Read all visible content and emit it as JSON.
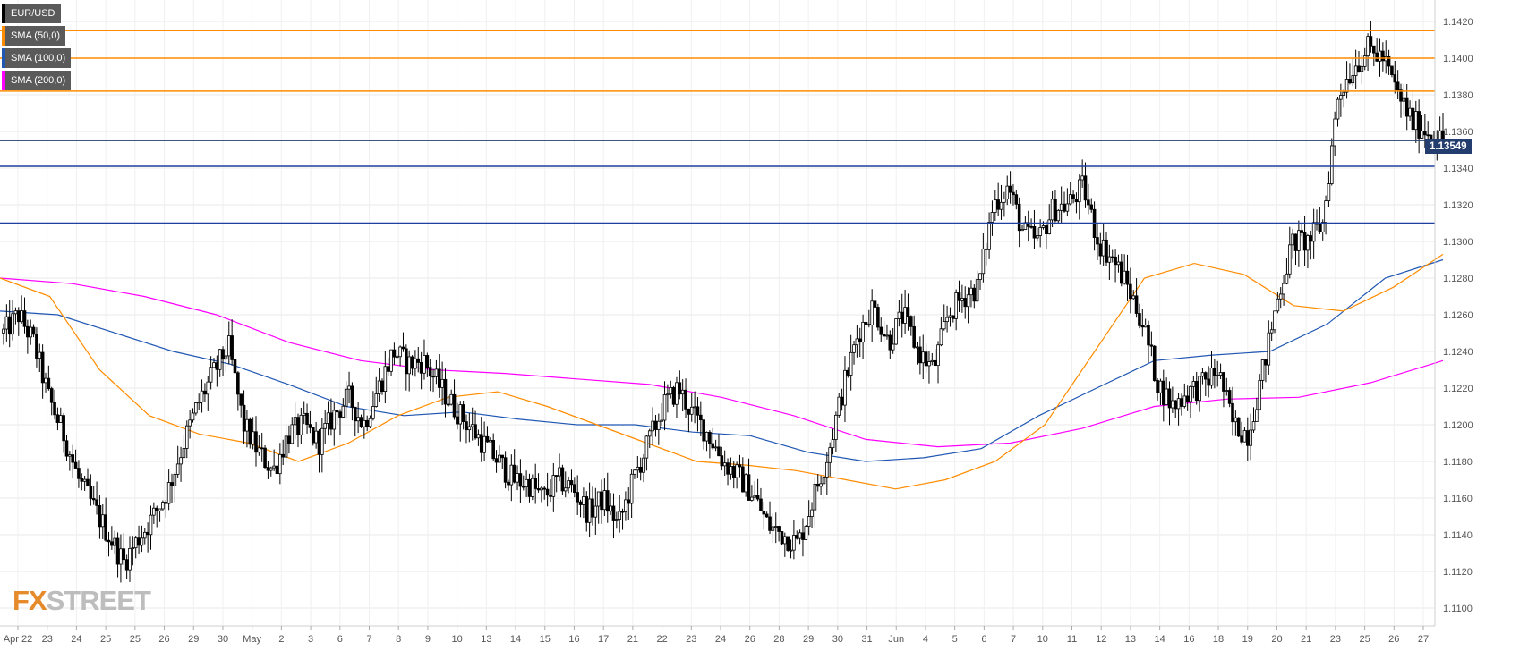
{
  "legend": [
    {
      "label": "EUR/USD",
      "color": "#000000"
    },
    {
      "label": "SMA (50,0)",
      "color": "#ff8c00"
    },
    {
      "label": "SMA (100,0)",
      "color": "#2057b3"
    },
    {
      "label": "SMA (200,0)",
      "color": "#ff00ff"
    }
  ],
  "last_price": "1.13549",
  "logo": {
    "fx": "FX",
    "street": "STREET",
    "x_color": "#e58b2c"
  },
  "chart_data": {
    "type": "candlestick",
    "symbol": "EUR/USD",
    "timeframe": "4H",
    "ylim": [
      1.109,
      1.143
    ],
    "y_ticks": [
      "1.1100",
      "1.1120",
      "1.1140",
      "1.1160",
      "1.1180",
      "1.1200",
      "1.1220",
      "1.1240",
      "1.1260",
      "1.1280",
      "1.1300",
      "1.1320",
      "1.1340",
      "1.1360",
      "1.1380",
      "1.1400",
      "1.1420"
    ],
    "x_ticks": [
      "Apr 22",
      "23",
      "24",
      "25",
      "25",
      "26",
      "29",
      "30",
      "May",
      "2",
      "3",
      "6",
      "7",
      "8",
      "9",
      "10",
      "13",
      "14",
      "15",
      "16",
      "17",
      "21",
      "22",
      "23",
      "24",
      "26",
      "28",
      "29",
      "30",
      "31",
      "Jun",
      "4",
      "5",
      "6",
      "7",
      "10",
      "11",
      "12",
      "13",
      "14",
      "16",
      "18",
      "19",
      "20",
      "21",
      "23",
      "25",
      "26",
      "27"
    ],
    "grid": true,
    "horizontal_levels": [
      {
        "value": 1.1415,
        "color": "#ff8c00"
      },
      {
        "value": 1.14,
        "color": "#ff8c00"
      },
      {
        "value": 1.1382,
        "color": "#ff8c00"
      },
      {
        "value": 1.1341,
        "color": "#1f3fa0"
      },
      {
        "value": 1.131,
        "color": "#1f3fa0"
      }
    ],
    "current_price": 1.13549,
    "anchors": [
      1.125,
      1.126,
      1.1245,
      1.1215,
      1.1195,
      1.117,
      1.1155,
      1.114,
      1.1125,
      1.1138,
      1.115,
      1.1165,
      1.119,
      1.1212,
      1.1228,
      1.1243,
      1.12,
      1.1185,
      1.1175,
      1.1195,
      1.12,
      1.119,
      1.1205,
      1.1215,
      1.12,
      1.122,
      1.124,
      1.1233,
      1.1235,
      1.1222,
      1.121,
      1.12,
      1.119,
      1.118,
      1.117,
      1.1168,
      1.116,
      1.117,
      1.1165,
      1.1152,
      1.116,
      1.1145,
      1.117,
      1.119,
      1.121,
      1.122,
      1.1205,
      1.1195,
      1.118,
      1.1172,
      1.1162,
      1.1145,
      1.114,
      1.1135,
      1.116,
      1.1185,
      1.122,
      1.125,
      1.1265,
      1.1245,
      1.126,
      1.124,
      1.123,
      1.126,
      1.127,
      1.1275,
      1.132,
      1.133,
      1.1305,
      1.13,
      1.1318,
      1.132,
      1.133,
      1.13,
      1.129,
      1.1275,
      1.1255,
      1.1222,
      1.121,
      1.1218,
      1.1222,
      1.123,
      1.12,
      1.1195,
      1.123,
      1.127,
      1.13,
      1.13,
      1.131,
      1.138,
      1.1395,
      1.1405,
      1.14,
      1.138,
      1.1365,
      1.136,
      1.1355
    ],
    "sma50": [
      1.128,
      1.127,
      1.123,
      1.1205,
      1.1195,
      1.119,
      1.118,
      1.119,
      1.1205,
      1.1215,
      1.1218,
      1.121,
      1.12,
      1.119,
      1.118,
      1.1178,
      1.1175,
      1.117,
      1.1165,
      1.117,
      1.118,
      1.12,
      1.124,
      1.128,
      1.1288,
      1.1282,
      1.1265,
      1.1262,
      1.1275,
      1.1293
    ],
    "sma100": [
      1.1262,
      1.126,
      1.125,
      1.124,
      1.1233,
      1.1222,
      1.121,
      1.1205,
      1.1207,
      1.1203,
      1.12,
      1.12,
      1.1196,
      1.1194,
      1.1185,
      1.118,
      1.1182,
      1.1187,
      1.1205,
      1.122,
      1.1235,
      1.1238,
      1.124,
      1.1255,
      1.128,
      1.129
    ],
    "sma200": [
      1.128,
      1.1277,
      1.127,
      1.126,
      1.1245,
      1.1235,
      1.123,
      1.1228,
      1.1225,
      1.1222,
      1.1215,
      1.1205,
      1.1192,
      1.1188,
      1.119,
      1.1198,
      1.121,
      1.1214,
      1.1215,
      1.1223,
      1.1235
    ]
  }
}
